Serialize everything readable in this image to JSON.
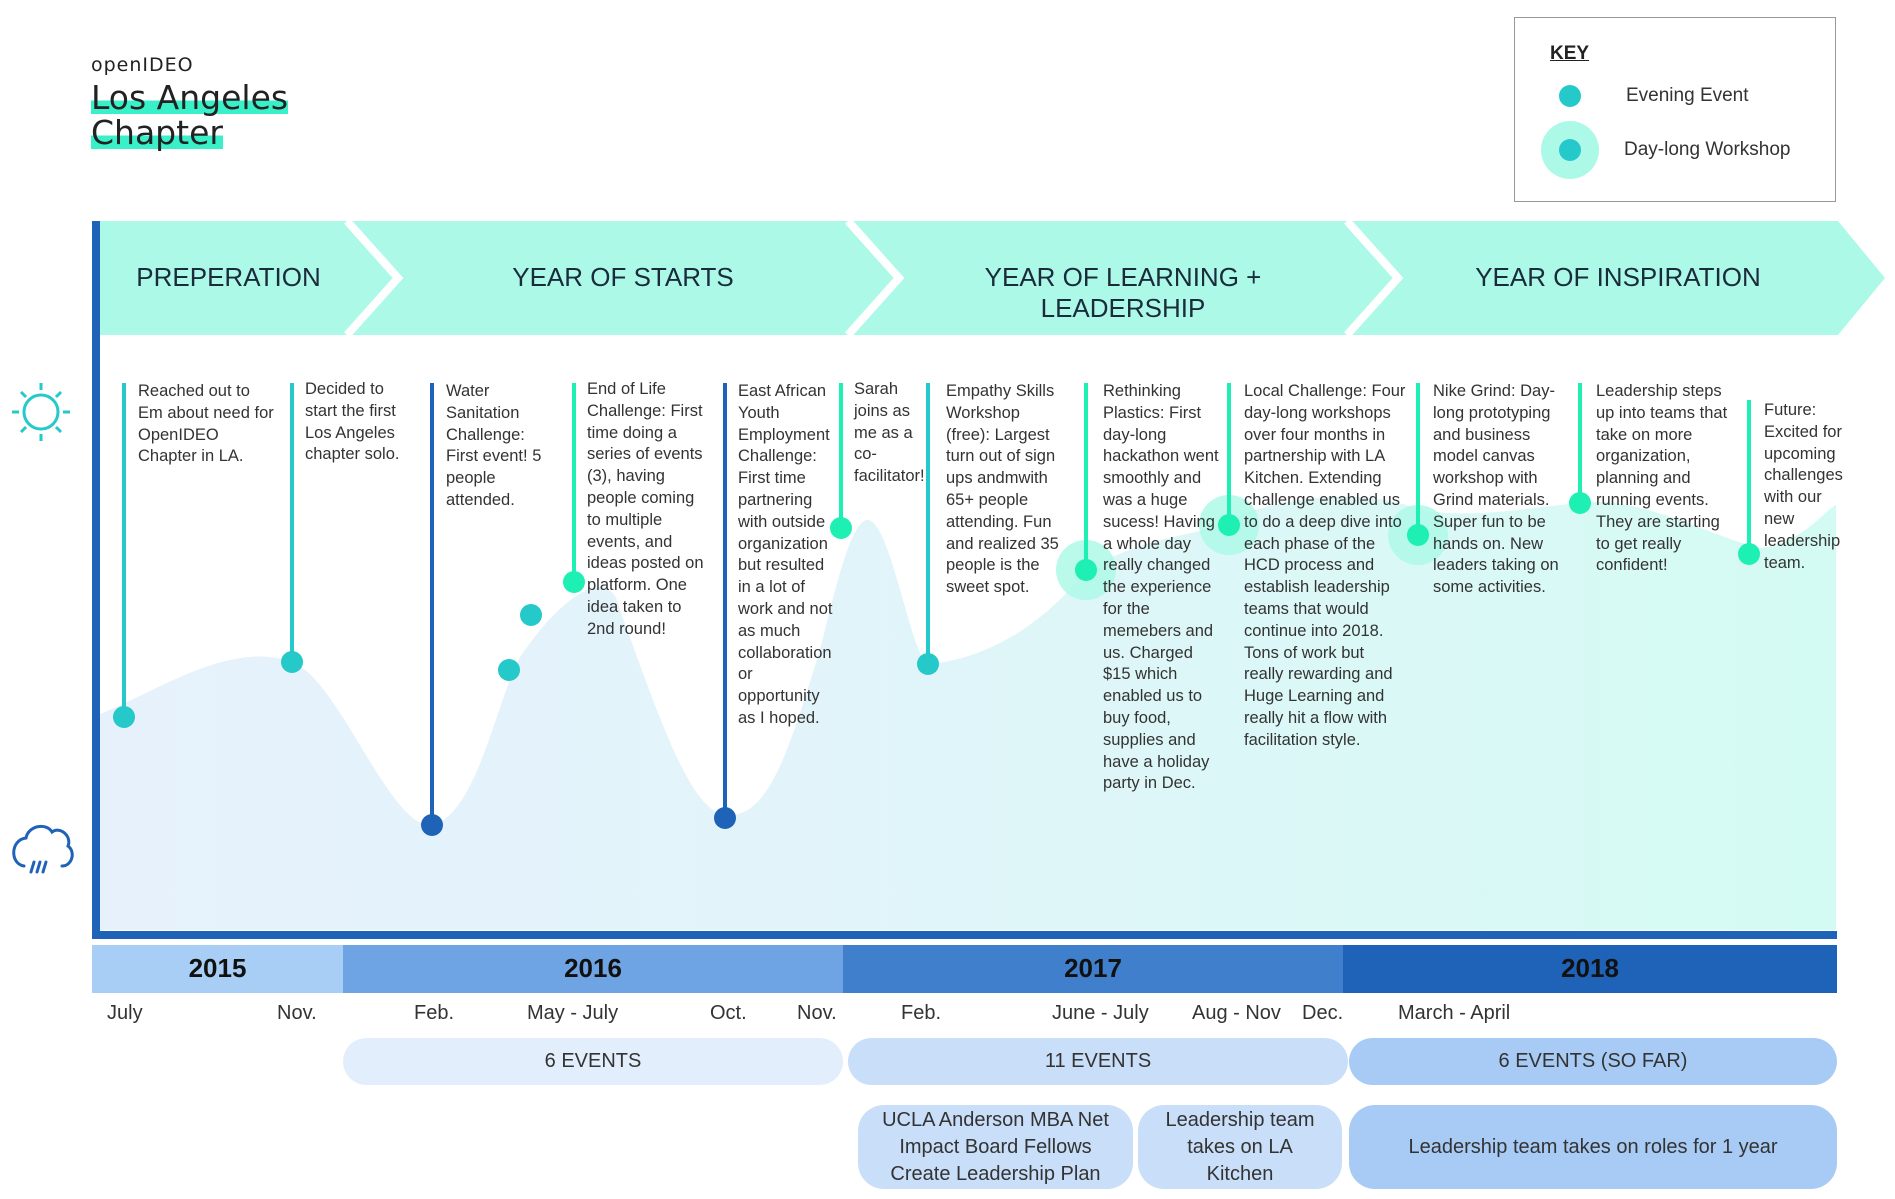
{
  "brand": "openIDEO",
  "chapter_line1": "Los Angeles",
  "chapter_line2": "Chapter",
  "key": {
    "title": "KEY",
    "evening_label": "Evening Event",
    "day_label": "Day-long Workshop"
  },
  "phases": [
    {
      "label": "PREPERATION"
    },
    {
      "label": "YEAR OF STARTS"
    },
    {
      "label": "YEAR OF LEARNING + LEADERSHIP"
    },
    {
      "label": "YEAR OF INSPIRATION"
    }
  ],
  "events": [
    {
      "text": "Reached out to Em about need for OpenIDEO Chapter in LA."
    },
    {
      "text": "Decided to start the first Los Angeles chapter solo."
    },
    {
      "text": "Water Sanitation Challenge: First event! 5 people attended."
    },
    {
      "text": "End of Life Challenge: First time doing a series of events (3), having people coming to multiple events, and ideas posted on platform. One idea taken to 2nd round!"
    },
    {
      "text": "East African Youth Employment Challenge: First time partnering with outside organization but resulted in a lot of work and not as much collaboration or opportunity as I hoped."
    },
    {
      "text": "Sarah joins as me as a co-facilitator!"
    },
    {
      "text": "Empathy Skills Workshop (free): Largest turn out of sign ups andmwith 65+ people attending. Fun and realized 35 people is the sweet spot."
    },
    {
      "text": "Rethinking Plastics: First day-long hackathon went smoothly and was a huge sucess! Having a whole day really changed the experience for the memebers and us. Charged $15 which enabled us to buy food, supplies and have a holiday party in Dec."
    },
    {
      "text": "Local Challenge: Four day-long workshops over four months in partnership with LA Kitchen. Extending challenge enabled us to do a deep dive into each phase of the HCD process and establish leadership teams that would continue into 2018. Tons of work but really rewarding and Huge Learning and really hit a flow with facilitation style."
    },
    {
      "text": "Nike Grind: Day-long prototyping and business model canvas workshop with Grind materials. Super fun to be hands on. New leaders taking on some activities."
    },
    {
      "text": "Leadership steps up into teams that take on more organization, planning and running events. They are starting to get really confident!"
    },
    {
      "text": "Future: Excited for upcoming challenges with our new leadership team."
    }
  ],
  "years": [
    {
      "label": "2015"
    },
    {
      "label": "2016"
    },
    {
      "label": "2017"
    },
    {
      "label": "2018"
    }
  ],
  "months": [
    {
      "label": "July"
    },
    {
      "label": "Nov."
    },
    {
      "label": "Feb."
    },
    {
      "label": "May - July"
    },
    {
      "label": "Oct."
    },
    {
      "label": "Nov."
    },
    {
      "label": "Feb."
    },
    {
      "label": "June - July"
    },
    {
      "label": "Aug - Nov"
    },
    {
      "label": "Dec."
    },
    {
      "label": "March - April"
    }
  ],
  "event_counts": [
    {
      "label": "6 EVENTS"
    },
    {
      "label": "11 EVENTS"
    },
    {
      "label": "6 EVENTS (SO FAR)"
    }
  ],
  "milestones": [
    {
      "label": "UCLA Anderson MBA Net Impact Board Fellows Create Leadership Plan"
    },
    {
      "label": "Leadership team takes on LA Kitchen"
    },
    {
      "label": "Leadership team takes on roles for 1 year"
    }
  ],
  "icons": {
    "sun": "sun-icon",
    "rain": "rain-cloud-icon"
  },
  "colors": {
    "mint": "#adf9e8",
    "teal_marker": "#25c9c9",
    "green_marker": "#1ef0b4",
    "dark_blue_marker": "#1e63b6",
    "year_2015": "#a8cef5",
    "year_2016": "#6fa4e4",
    "year_2017": "#3f7fcb",
    "year_2018": "#1f63b8"
  }
}
